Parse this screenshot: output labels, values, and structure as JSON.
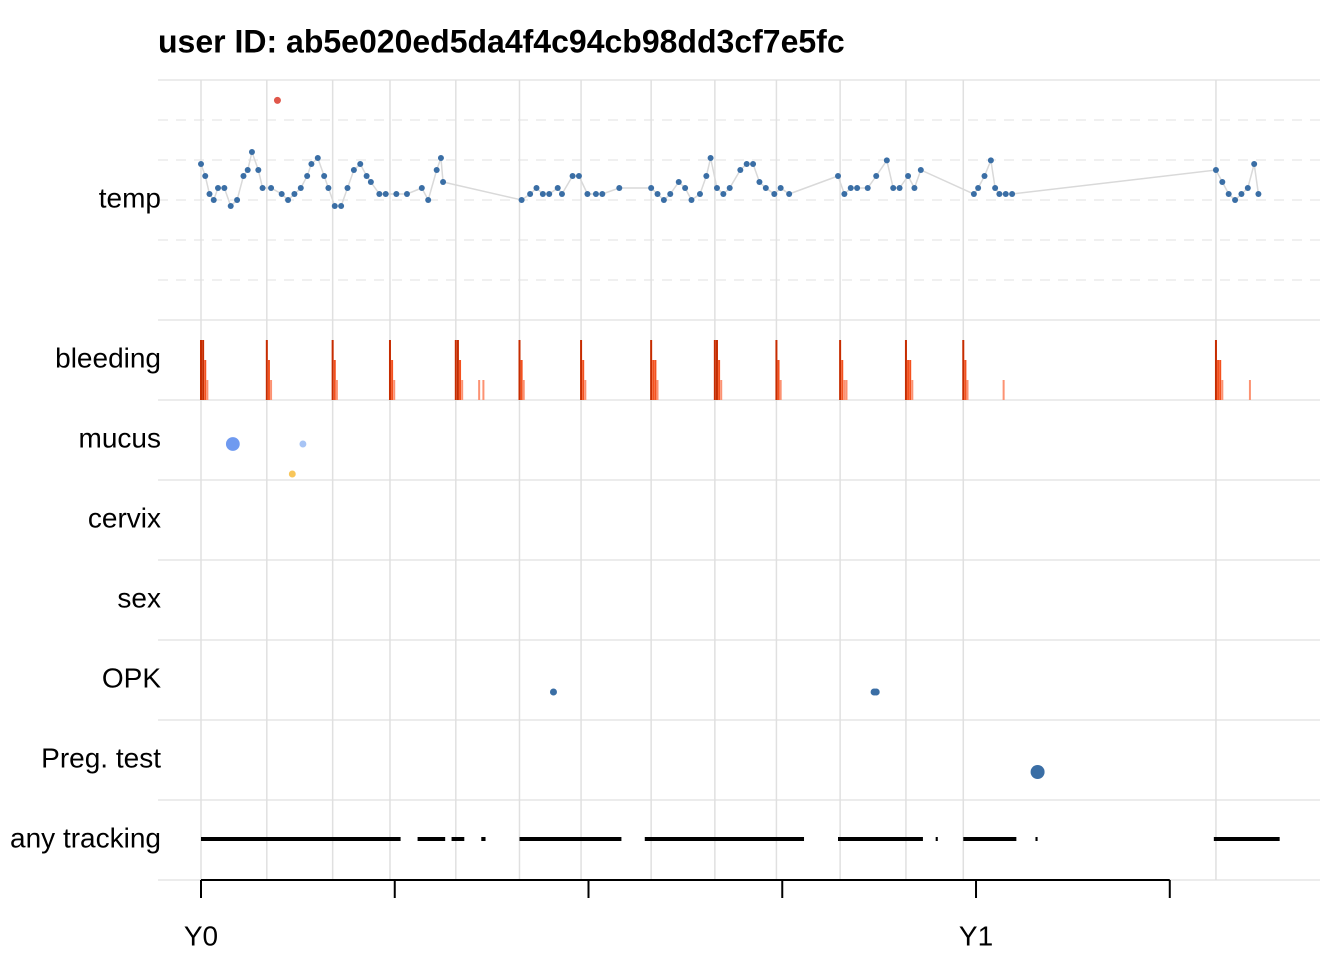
{
  "chart_data": {
    "type": "tracking",
    "title": "user ID:  ab5e020ed5da4f4c94cb98dd3cf7e5fc",
    "rows": [
      "temp",
      "bleeding",
      "mucus",
      "cervix",
      "sex",
      "OPK",
      "Preg. test",
      "any tracking"
    ],
    "xlim": [
      -20.25,
      527
    ],
    "xticks": [
      {
        "value": 0,
        "label": "Y0"
      },
      {
        "value": 91.25,
        "label": null
      },
      {
        "value": 182.5,
        "label": null
      },
      {
        "value": 273.75,
        "label": null
      },
      {
        "value": 365,
        "label": "Y1"
      },
      {
        "value": 456.25,
        "label": null
      }
    ],
    "cycle_starts": [
      0,
      31,
      62,
      89,
      120,
      150,
      179,
      212,
      242,
      271,
      301,
      332,
      359,
      478
    ],
    "temp": {
      "ylim": [
        35.5,
        37.5
      ],
      "color": "#3a6ea5",
      "line_color": "#d9d9d9",
      "days": [
        0,
        2,
        4,
        6,
        8,
        11,
        14,
        17,
        20,
        22,
        24,
        27,
        29,
        33,
        38,
        41,
        44,
        47,
        50,
        52,
        55,
        58,
        60,
        63,
        66,
        69,
        72,
        75,
        78,
        80,
        84,
        87,
        92,
        97,
        104,
        107,
        111,
        113,
        114,
        151,
        155,
        158,
        161,
        164,
        168,
        170,
        175,
        178,
        182,
        186,
        189,
        197,
        212,
        215,
        218,
        221,
        225,
        228,
        231,
        235,
        238,
        240,
        243,
        246,
        249,
        254,
        257,
        260,
        263,
        266,
        270,
        273,
        277,
        300,
        303,
        306,
        309,
        314,
        318,
        323,
        326,
        329,
        333,
        336,
        339,
        364,
        366,
        369,
        372,
        374,
        376,
        379,
        382,
        478,
        481,
        484,
        487,
        490,
        493,
        496,
        498
      ],
      "values": [
        36.8,
        36.7,
        36.55,
        36.5,
        36.6,
        36.6,
        36.45,
        36.5,
        36.7,
        36.75,
        36.9,
        36.75,
        36.6,
        36.6,
        36.55,
        36.5,
        36.55,
        36.6,
        36.7,
        36.8,
        36.85,
        36.7,
        36.6,
        36.45,
        36.45,
        36.6,
        36.75,
        36.8,
        36.7,
        36.65,
        36.55,
        36.55,
        36.55,
        36.55,
        36.6,
        36.5,
        36.75,
        36.85,
        36.65,
        36.5,
        36.55,
        36.6,
        36.55,
        36.55,
        36.6,
        36.55,
        36.7,
        36.7,
        36.55,
        36.55,
        36.55,
        36.6,
        36.6,
        36.55,
        36.5,
        36.55,
        36.65,
        36.6,
        36.5,
        36.55,
        36.7,
        36.85,
        36.6,
        36.55,
        36.6,
        36.75,
        36.8,
        36.8,
        36.65,
        36.6,
        36.55,
        36.6,
        36.55,
        36.7,
        36.55,
        36.6,
        36.6,
        36.6,
        36.7,
        36.83,
        36.6,
        36.6,
        36.7,
        36.6,
        36.75,
        36.55,
        36.6,
        36.7,
        36.83,
        36.6,
        36.55,
        36.55,
        36.55,
        36.75,
        36.65,
        36.55,
        36.5,
        36.55,
        36.6,
        36.8,
        36.55
      ],
      "highlight": {
        "day": 36,
        "value": 37.33,
        "color": "#e0574a"
      }
    },
    "bleeding": {
      "max": 3,
      "colors": [
        "#fc9272",
        "#f4511e",
        "#c62c00"
      ],
      "days": [
        0,
        1,
        2,
        3,
        31,
        32,
        33,
        62,
        63,
        64,
        89,
        90,
        91,
        120,
        121,
        122,
        123,
        131,
        133,
        150,
        151,
        152,
        179,
        180,
        181,
        212,
        213,
        214,
        215,
        242,
        243,
        244,
        245,
        271,
        272,
        273,
        301,
        302,
        303,
        304,
        332,
        333,
        334,
        335,
        359,
        360,
        361,
        378,
        478,
        479,
        480,
        481,
        494
      ],
      "values": [
        3,
        3,
        2,
        1,
        3,
        2,
        1,
        3,
        2,
        1,
        3,
        2,
        1,
        3,
        3,
        2,
        1,
        1,
        1,
        3,
        2,
        1,
        3,
        2,
        1,
        3,
        2,
        2,
        1,
        3,
        3,
        2,
        1,
        3,
        2,
        1,
        3,
        2,
        1,
        1,
        3,
        2,
        2,
        1,
        3,
        2,
        1,
        1,
        3,
        2,
        2,
        1,
        1
      ]
    },
    "mucus": {
      "days": [
        15,
        48,
        43
      ],
      "values": [
        2,
        2,
        1
      ],
      "sizes": [
        3,
        1.5,
        1.5
      ],
      "colors": [
        "#6f9af0",
        "#a7c4f5",
        "#f8c65a"
      ]
    },
    "opk": {
      "days": [
        166,
        317,
        318
      ],
      "color": "#3a6ea5"
    },
    "preg_test": {
      "days": [
        394
      ],
      "color": "#3a6ea5"
    },
    "any_tracking": {
      "ranges": [
        [
          0,
          94
        ],
        [
          102,
          115
        ],
        [
          118,
          124
        ],
        [
          132,
          134
        ],
        [
          150,
          198
        ],
        [
          209,
          284
        ],
        [
          300,
          340
        ],
        [
          346,
          347
        ],
        [
          359,
          384
        ],
        [
          393,
          394
        ],
        [
          477,
          508
        ]
      ]
    }
  }
}
